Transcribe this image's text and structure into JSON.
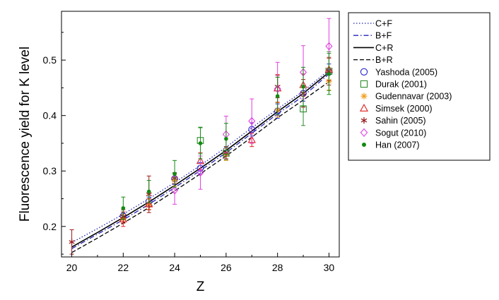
{
  "chart_data": {
    "type": "scatter",
    "xlabel": "Z",
    "ylabel": "Fluorescence yield for K level",
    "xlim": [
      19.6,
      30.4
    ],
    "ylim": [
      0.145,
      0.588
    ],
    "x_ticks": [
      20,
      22,
      24,
      26,
      28,
      30
    ],
    "y_ticks": [
      0.2,
      0.3,
      0.4,
      0.5
    ],
    "legend_position": "outside-right",
    "series": [
      {
        "name": "C+F",
        "kind": "line",
        "style": "dotted",
        "color": "#2323b4",
        "x": [
          20,
          21,
          22,
          23,
          24,
          25,
          26,
          27,
          28,
          29,
          30
        ],
        "y": [
          0.171,
          0.196,
          0.222,
          0.25,
          0.279,
          0.31,
          0.343,
          0.378,
          0.412,
          0.444,
          0.482
        ]
      },
      {
        "name": "B+F",
        "kind": "line",
        "style": "dashdot",
        "color": "#2323b4",
        "x": [
          20,
          21,
          22,
          23,
          24,
          25,
          26,
          27,
          28,
          29,
          30
        ],
        "y": [
          0.16,
          0.186,
          0.212,
          0.24,
          0.27,
          0.301,
          0.333,
          0.368,
          0.403,
          0.435,
          0.475
        ]
      },
      {
        "name": "C+R",
        "kind": "line",
        "style": "solid",
        "color": "#000000",
        "x": [
          20,
          21,
          22,
          23,
          24,
          25,
          26,
          27,
          28,
          29,
          30
        ],
        "y": [
          0.163,
          0.189,
          0.216,
          0.244,
          0.274,
          0.305,
          0.337,
          0.372,
          0.407,
          0.44,
          0.478
        ]
      },
      {
        "name": "B+R",
        "kind": "line",
        "style": "dashed",
        "color": "#000000",
        "x": [
          20,
          21,
          22,
          23,
          24,
          25,
          26,
          27,
          28,
          29,
          30
        ],
        "y": [
          0.153,
          0.179,
          0.206,
          0.234,
          0.264,
          0.295,
          0.327,
          0.361,
          0.396,
          0.428,
          0.461
        ]
      },
      {
        "name": "Yashoda (2005)",
        "kind": "marker",
        "marker": "circle",
        "color": "#2424d0",
        "points": [
          {
            "x": 22,
            "y": 0.219,
            "err": 0.007
          },
          {
            "x": 23,
            "y": 0.245,
            "err": 0.008
          },
          {
            "x": 24,
            "y": 0.286,
            "err": 0.01
          },
          {
            "x": 25,
            "y": 0.305,
            "err": 0.01
          },
          {
            "x": 26,
            "y": 0.332,
            "err": 0.01
          },
          {
            "x": 27,
            "y": 0.375,
            "err": 0.012
          },
          {
            "x": 28,
            "y": 0.408,
            "err": 0.013
          },
          {
            "x": 29,
            "y": 0.44,
            "err": 0.014
          },
          {
            "x": 30,
            "y": 0.478,
            "err": 0.015
          }
        ]
      },
      {
        "name": "Durak (2001)",
        "kind": "marker",
        "marker": "square",
        "color": "#2e8b2e",
        "points": [
          {
            "x": 25,
            "y": 0.355,
            "err": 0.024
          },
          {
            "x": 26,
            "y": 0.332,
            "err": 0.012
          },
          {
            "x": 29,
            "y": 0.412,
            "err": 0.03
          },
          {
            "x": 30,
            "y": 0.48,
            "err": 0.035
          }
        ]
      },
      {
        "name": "Gudennavar (2003)",
        "kind": "marker",
        "marker": "asterisk",
        "color": "#f0a020",
        "points": [
          {
            "x": 22,
            "y": 0.214,
            "err": 0.008
          },
          {
            "x": 23,
            "y": 0.24,
            "err": 0.009
          },
          {
            "x": 24,
            "y": 0.283,
            "err": 0.01
          },
          {
            "x": 26,
            "y": 0.33,
            "err": 0.011
          },
          {
            "x": 28,
            "y": 0.41,
            "err": 0.013
          },
          {
            "x": 30,
            "y": 0.462,
            "err": 0.016
          }
        ]
      },
      {
        "name": "Simsek (2000)",
        "kind": "marker",
        "marker": "triangle",
        "color": "#e02020",
        "points": [
          {
            "x": 22,
            "y": 0.213,
            "err": 0.013
          },
          {
            "x": 23,
            "y": 0.24,
            "err": 0.01
          },
          {
            "x": 25,
            "y": 0.318,
            "err": 0.015
          },
          {
            "x": 27,
            "y": 0.356,
            "err": 0.012
          },
          {
            "x": 28,
            "y": 0.449,
            "err": 0.025
          },
          {
            "x": 29,
            "y": 0.455,
            "err": 0.02
          },
          {
            "x": 30,
            "y": 0.483,
            "err": 0.02
          }
        ]
      },
      {
        "name": "Sahin (2005)",
        "kind": "marker",
        "marker": "star",
        "color": "#9b1c1c",
        "points": [
          {
            "x": 20,
            "y": 0.172,
            "err": 0.022
          },
          {
            "x": 22,
            "y": 0.218,
            "err": 0.012
          },
          {
            "x": 23,
            "y": 0.258,
            "err": 0.033
          },
          {
            "x": 24,
            "y": 0.287,
            "err": 0.01
          },
          {
            "x": 26,
            "y": 0.333,
            "err": 0.011
          },
          {
            "x": 28,
            "y": 0.452,
            "err": 0.02
          },
          {
            "x": 29,
            "y": 0.44,
            "err": 0.025
          },
          {
            "x": 30,
            "y": 0.48,
            "err": 0.025
          }
        ]
      },
      {
        "name": "Sogut (2010)",
        "kind": "marker",
        "marker": "diamond",
        "color": "#e040e0",
        "points": [
          {
            "x": 24,
            "y": 0.265,
            "err": 0.025
          },
          {
            "x": 25,
            "y": 0.297,
            "err": 0.03
          },
          {
            "x": 26,
            "y": 0.366,
            "err": 0.033
          },
          {
            "x": 27,
            "y": 0.39,
            "err": 0.04
          },
          {
            "x": 28,
            "y": 0.448,
            "err": 0.048
          },
          {
            "x": 29,
            "y": 0.478,
            "err": 0.048
          },
          {
            "x": 30,
            "y": 0.525,
            "err": 0.05
          }
        ]
      },
      {
        "name": "Han (2007)",
        "kind": "marker",
        "marker": "dot",
        "color": "#138a13",
        "points": [
          {
            "x": 22,
            "y": 0.233,
            "err": 0.02
          },
          {
            "x": 23,
            "y": 0.263,
            "err": 0.02
          },
          {
            "x": 24,
            "y": 0.295,
            "err": 0.024
          },
          {
            "x": 25,
            "y": 0.35,
            "err": 0.028
          },
          {
            "x": 26,
            "y": 0.358,
            "err": 0.028
          },
          {
            "x": 28,
            "y": 0.435,
            "err": 0.034
          },
          {
            "x": 29,
            "y": 0.452,
            "err": 0.035
          },
          {
            "x": 30,
            "y": 0.475,
            "err": 0.037
          }
        ]
      }
    ]
  }
}
